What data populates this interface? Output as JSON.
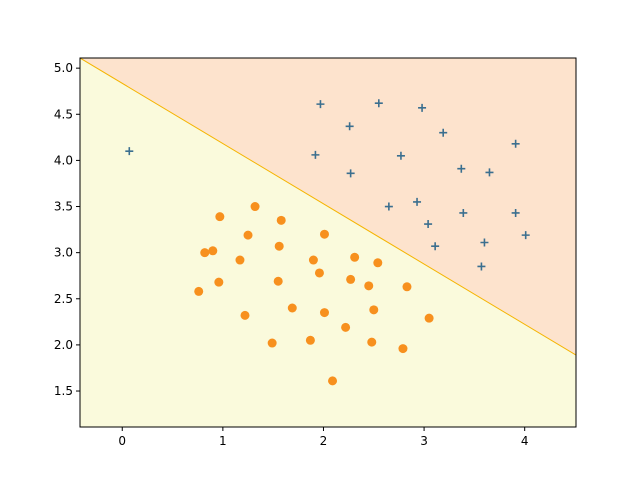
{
  "chart_data": {
    "type": "scatter",
    "xlim": [
      -0.42,
      4.51
    ],
    "ylim": [
      1.11,
      5.11
    ],
    "xticks": [
      0,
      1,
      2,
      3,
      4
    ],
    "yticks": [
      1.5,
      {
        "value": 2,
        "label": "2.0"
      },
      2.5,
      {
        "value": 3,
        "label": "3.0"
      },
      3.5,
      {
        "value": 4,
        "label": "4.0"
      },
      4.5,
      {
        "value": 5,
        "label": "5.0"
      }
    ],
    "boundary": {
      "x": [
        -0.42,
        4.51
      ],
      "y": [
        5.11,
        1.89
      ],
      "color": "#f5b400",
      "fill_above": "#fde3cd",
      "fill_below": "#fafadc"
    },
    "series": [
      {
        "marker": "plus",
        "color": "#3b6f8f",
        "x": [
          0.07,
          1.97,
          2.55,
          2.98,
          2.26,
          3.19,
          1.92,
          2.77,
          3.91,
          2.27,
          3.37,
          3.65,
          2.65,
          2.93,
          3.04,
          3.39,
          3.91,
          3.11,
          3.6,
          4.01,
          3.57
        ],
        "y": [
          4.1,
          4.61,
          4.62,
          4.57,
          4.37,
          4.3,
          4.06,
          4.05,
          4.18,
          3.86,
          3.91,
          3.87,
          3.5,
          3.55,
          3.31,
          3.43,
          3.43,
          3.07,
          3.11,
          3.19,
          2.85
        ]
      },
      {
        "marker": "circle",
        "color": "#f7901e",
        "x": [
          0.97,
          1.32,
          1.58,
          1.25,
          2.01,
          0.82,
          0.9,
          1.56,
          1.17,
          1.9,
          2.31,
          2.54,
          1.96,
          0.96,
          1.55,
          2.27,
          2.45,
          2.83,
          0.76,
          1.69,
          2.5,
          1.22,
          2.01,
          3.05,
          2.22,
          1.87,
          1.49,
          2.48,
          2.79,
          2.09
        ],
        "y": [
          3.39,
          3.5,
          3.35,
          3.19,
          3.2,
          3.0,
          3.02,
          3.07,
          2.92,
          2.92,
          2.95,
          2.89,
          2.78,
          2.68,
          2.69,
          2.71,
          2.64,
          2.63,
          2.58,
          2.4,
          2.38,
          2.32,
          2.35,
          2.29,
          2.19,
          2.05,
          2.02,
          2.03,
          1.96,
          1.61
        ]
      }
    ]
  }
}
